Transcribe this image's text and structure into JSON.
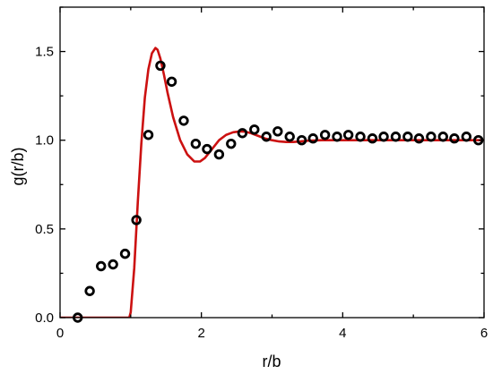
{
  "chart_data": {
    "type": "scatter",
    "xlabel": "r/b",
    "ylabel": "g(r/b)",
    "xlim": [
      0,
      6
    ],
    "ylim": [
      0,
      1.75
    ],
    "x_ticks": [
      0,
      2,
      4,
      6
    ],
    "x_tick_labels": [
      "0",
      "2",
      "4",
      "6"
    ],
    "y_ticks": [
      0.0,
      0.5,
      1.0,
      1.5
    ],
    "y_tick_labels": [
      "0.0",
      "0.5",
      "1.0",
      "1.5"
    ],
    "grid": false,
    "series": [
      {
        "kind": "markers",
        "marker": "open-circle",
        "color": "#000000",
        "x": [
          0.25,
          0.42,
          0.58,
          0.75,
          0.92,
          1.08,
          1.25,
          1.42,
          1.58,
          1.75,
          1.92,
          2.08,
          2.25,
          2.42,
          2.58,
          2.75,
          2.92,
          3.08,
          3.25,
          3.42,
          3.58,
          3.75,
          3.92,
          4.08,
          4.25,
          4.42,
          4.58,
          4.75,
          4.92,
          5.08,
          5.25,
          5.42,
          5.58,
          5.75,
          5.92
        ],
        "y": [
          0.0,
          0.15,
          0.29,
          0.3,
          0.36,
          0.55,
          1.03,
          1.42,
          1.33,
          1.11,
          0.98,
          0.95,
          0.92,
          0.98,
          1.04,
          1.06,
          1.02,
          1.05,
          1.02,
          1.0,
          1.01,
          1.03,
          1.02,
          1.03,
          1.02,
          1.01,
          1.02,
          1.02,
          1.02,
          1.01,
          1.02,
          1.02,
          1.01,
          1.02,
          1.0
        ]
      },
      {
        "kind": "line",
        "color": "#cc1111",
        "x": [
          0.0,
          0.5,
          0.98,
          1.0,
          1.05,
          1.1,
          1.15,
          1.2,
          1.25,
          1.3,
          1.35,
          1.38,
          1.42,
          1.47,
          1.52,
          1.6,
          1.7,
          1.8,
          1.9,
          1.98,
          2.05,
          2.15,
          2.25,
          2.35,
          2.45,
          2.55,
          2.62,
          2.7,
          2.8,
          2.9,
          3.0,
          3.1,
          3.2,
          3.3,
          3.4,
          3.5,
          3.7,
          4.0,
          4.5,
          5.0,
          5.5,
          6.0
        ],
        "y": [
          0.0,
          0.0,
          0.0,
          0.03,
          0.28,
          0.65,
          0.98,
          1.24,
          1.4,
          1.49,
          1.52,
          1.51,
          1.46,
          1.37,
          1.27,
          1.13,
          1.0,
          0.92,
          0.88,
          0.88,
          0.9,
          0.95,
          1.0,
          1.03,
          1.045,
          1.05,
          1.048,
          1.04,
          1.025,
          1.01,
          1.0,
          0.993,
          0.99,
          0.99,
          0.993,
          0.997,
          1.0,
          1.0,
          1.0,
          1.0,
          1.0,
          1.0
        ]
      }
    ]
  }
}
